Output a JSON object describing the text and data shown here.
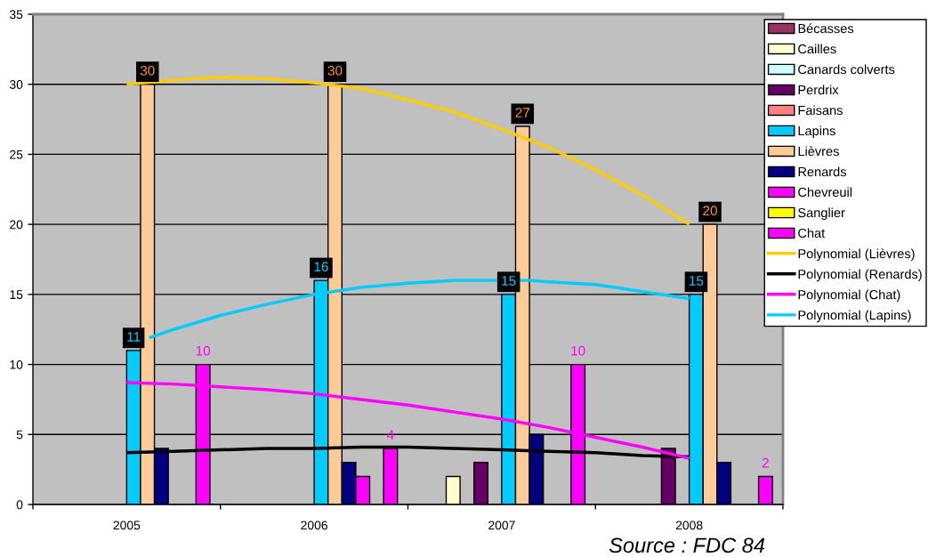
{
  "chart_data": {
    "type": "bar",
    "x": [
      2005,
      2006,
      2007,
      2008
    ],
    "xlim": [
      2004.5,
      2008.5
    ],
    "xticks": [
      {
        "value": 2004.5,
        "label": null
      },
      2005,
      {
        "value": 2005.5,
        "label": null
      },
      2006,
      {
        "value": 2006.5,
        "label": null
      },
      2007,
      {
        "value": 2007.5,
        "label": null
      },
      2008,
      {
        "value": 2008.5,
        "label": null
      }
    ],
    "ylim": [
      0,
      35
    ],
    "yticks": [
      0,
      5,
      10,
      15,
      20,
      25,
      30,
      35
    ],
    "grid": "y",
    "legend": "top right",
    "annotations": [
      "Source : FDC 84"
    ],
    "series": [
      {
        "name": "Bécasses",
        "color": "#993366",
        "values": [
          null,
          null,
          null,
          null
        ]
      },
      {
        "name": "Cailles",
        "color": "#ffffcc",
        "values": [
          null,
          null,
          2,
          null
        ]
      },
      {
        "name": "Canards colverts",
        "color": "#ccffff",
        "values": [
          null,
          null,
          null,
          null
        ]
      },
      {
        "name": "Perdrix",
        "color": "#660066",
        "values": [
          null,
          null,
          3,
          4
        ]
      },
      {
        "name": "Faisans",
        "color": "#ff8080",
        "values": [
          null,
          null,
          null,
          null
        ]
      },
      {
        "name": "Lapins",
        "color": "#00ccff",
        "values": [
          11,
          16,
          15,
          15
        ],
        "value_labels": [
          "11",
          "16",
          "15",
          "15"
        ]
      },
      {
        "name": "Lièvres",
        "color": "#ffcc99",
        "values": [
          30,
          30,
          27,
          20
        ],
        "value_labels": [
          "30",
          "30",
          "27",
          "20"
        ]
      },
      {
        "name": "Renards",
        "color": "#000080",
        "values": [
          4,
          3,
          5,
          3
        ]
      },
      {
        "name": "Chevreuil",
        "color": "#ff00ff",
        "values": [
          null,
          2,
          null,
          null
        ]
      },
      {
        "name": "Sanglier",
        "color": "#ffff00",
        "values": [
          null,
          null,
          null,
          null
        ]
      },
      {
        "name": "Chat",
        "color": "#ff00ff",
        "values": [
          10,
          4,
          10,
          2
        ],
        "value_labels": [
          "10",
          "4",
          "10",
          "2"
        ]
      },
      {
        "name": "Polynomial (Lièvres)",
        "type": "line",
        "color": "#ffcc00",
        "x": [
          2005,
          2005.25,
          2005.5,
          2005.75,
          2006,
          2006.25,
          2006.5,
          2006.75,
          2007,
          2007.25,
          2007.5,
          2007.75,
          2008
        ],
        "values": [
          30.0,
          30.3,
          30.5,
          30.4,
          30.1,
          29.7,
          28.9,
          28.0,
          26.8,
          25.5,
          23.9,
          22.1,
          20.0
        ]
      },
      {
        "name": "Polynomial (Renards)",
        "type": "line",
        "color": "#000000",
        "x": [
          2005,
          2005.25,
          2005.5,
          2005.75,
          2006,
          2006.25,
          2006.5,
          2006.75,
          2007,
          2007.25,
          2007.5,
          2007.75,
          2008
        ],
        "values": [
          3.7,
          3.8,
          3.9,
          4.0,
          4.0,
          4.1,
          4.1,
          4.0,
          3.9,
          3.8,
          3.7,
          3.5,
          3.4
        ]
      },
      {
        "name": "Polynomial (Chat)",
        "type": "line",
        "color": "#ff00ff",
        "x": [
          2005,
          2005.25,
          2005.5,
          2005.75,
          2006,
          2006.25,
          2006.5,
          2006.75,
          2007,
          2007.25,
          2007.5,
          2007.75,
          2008
        ],
        "values": [
          8.7,
          8.6,
          8.4,
          8.2,
          7.9,
          7.5,
          7.1,
          6.6,
          6.1,
          5.5,
          4.8,
          4.1,
          3.3
        ]
      },
      {
        "name": "Polynomial (Lapins)",
        "type": "line",
        "color": "#00ccff",
        "x": [
          2005.12,
          2005.25,
          2005.5,
          2005.75,
          2006,
          2006.25,
          2006.5,
          2006.75,
          2006.9,
          2007.15,
          2007.25,
          2007.5,
          2007.75,
          2008
        ],
        "values": [
          11.9,
          12.5,
          13.5,
          14.3,
          15.0,
          15.5,
          15.8,
          16.0,
          16.0,
          16.0,
          15.9,
          15.7,
          15.2,
          14.7
        ]
      }
    ]
  }
}
